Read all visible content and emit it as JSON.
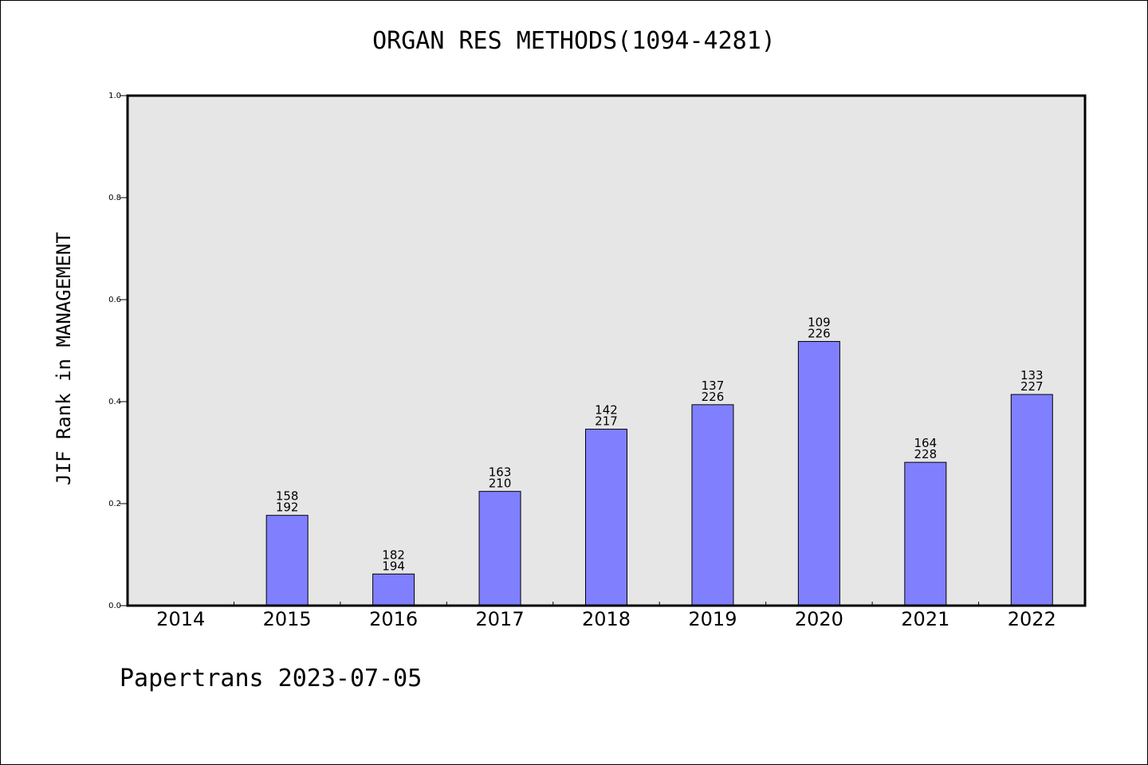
{
  "title": "ORGAN RES METHODS(1094-4281)",
  "footer": "Papertrans 2023-07-05",
  "colors": {
    "plot_background": "#e6e6e6",
    "bar_fill": "#8080ff",
    "bar_stroke": "#000000"
  },
  "chart_data": {
    "type": "bar",
    "title": "ORGAN RES METHODS(1094-4281)",
    "xlabel": "",
    "ylabel": "JIF Rank in MANAGEMENT",
    "ylim": [
      0,
      1.0
    ],
    "yticks": [
      "0.0",
      "0.2",
      "0.4",
      "0.6",
      "0.8",
      "1.0"
    ],
    "categories": [
      "2014",
      "2015",
      "2016",
      "2017",
      "2018",
      "2019",
      "2020",
      "2021",
      "2022"
    ],
    "values": [
      null,
      0.177,
      0.062,
      0.224,
      0.346,
      0.394,
      0.518,
      0.281,
      0.414
    ],
    "rank": [
      null,
      "158",
      "182",
      "163",
      "142",
      "137",
      "109",
      "164",
      "133"
    ],
    "total": [
      null,
      "192",
      "194",
      "210",
      "217",
      "226",
      "226",
      "228",
      "227"
    ],
    "grid": false,
    "legend": "none"
  }
}
